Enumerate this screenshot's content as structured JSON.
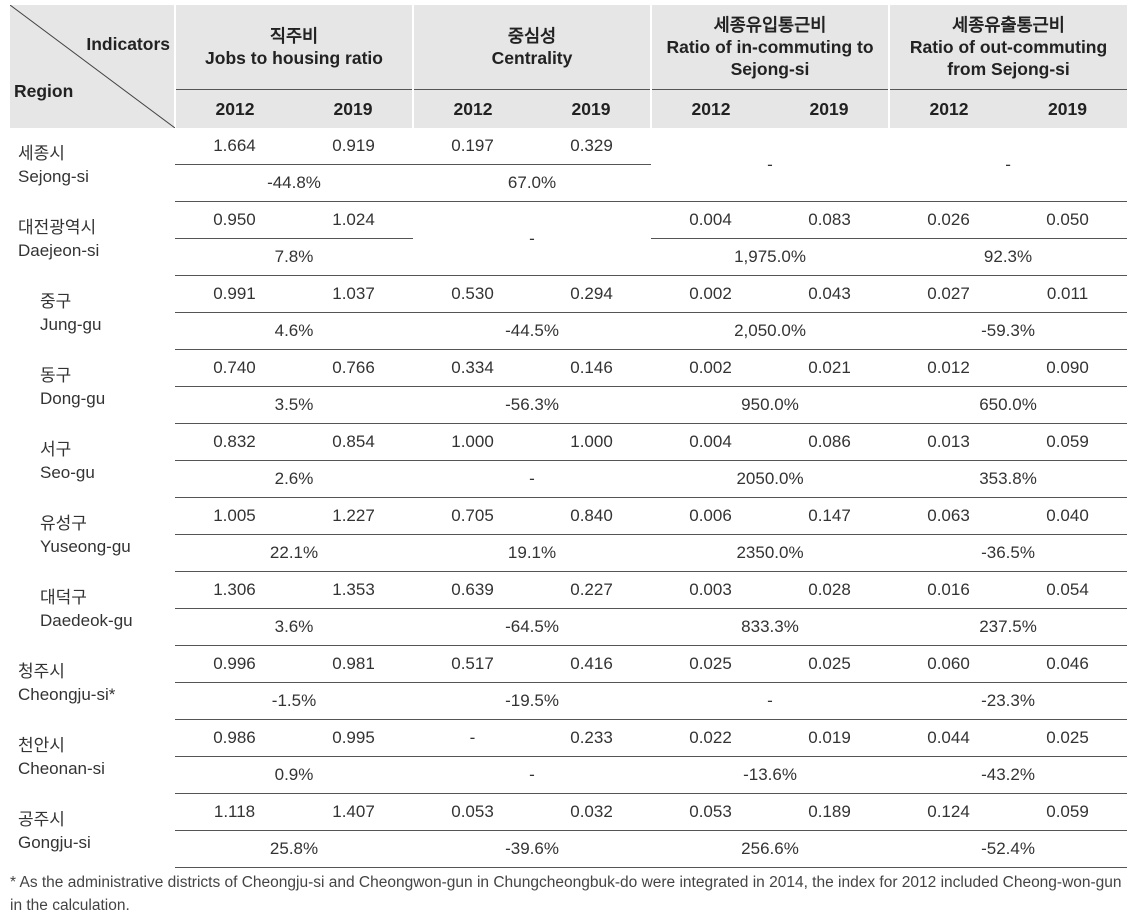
{
  "header": {
    "indicators_label": "Indicators",
    "region_label": "Region",
    "columns": [
      {
        "kr": "직주비",
        "en": "Jobs to housing ratio"
      },
      {
        "kr": "중심성",
        "en": "Centrality"
      },
      {
        "kr": "세종유입통근비",
        "en": "Ratio of in-commuting to Sejong-si"
      },
      {
        "kr": "세종유출통근비",
        "en": "Ratio of out-commuting from Sejong-si"
      }
    ],
    "year_a": "2012",
    "year_b": "2019"
  },
  "rows": [
    {
      "kr": "세종시",
      "en": "Sejong-si",
      "sub": false,
      "jh": [
        "1.664",
        "0.919",
        "-44.8%"
      ],
      "ce": [
        "0.197",
        "0.329",
        "67.0%"
      ],
      "in_merged": "-",
      "out_merged": "-"
    },
    {
      "kr": "대전광역시",
      "en": "Daejeon-si",
      "sub": false,
      "jh": [
        "0.950",
        "1.024",
        "7.8%"
      ],
      "ce_merged": "-",
      "in": [
        "0.004",
        "0.083",
        "1,975.0%"
      ],
      "out": [
        "0.026",
        "0.050",
        "92.3%"
      ]
    },
    {
      "kr": "중구",
      "en": "Jung-gu",
      "sub": true,
      "jh": [
        "0.991",
        "1.037",
        "4.6%"
      ],
      "ce": [
        "0.530",
        "0.294",
        "-44.5%"
      ],
      "in": [
        "0.002",
        "0.043",
        "2,050.0%"
      ],
      "out": [
        "0.027",
        "0.011",
        "-59.3%"
      ]
    },
    {
      "kr": "동구",
      "en": "Dong-gu",
      "sub": true,
      "jh": [
        "0.740",
        "0.766",
        "3.5%"
      ],
      "ce": [
        "0.334",
        "0.146",
        "-56.3%"
      ],
      "in": [
        "0.002",
        "0.021",
        "950.0%"
      ],
      "out": [
        "0.012",
        "0.090",
        "650.0%"
      ]
    },
    {
      "kr": "서구",
      "en": "Seo-gu",
      "sub": true,
      "jh": [
        "0.832",
        "0.854",
        "2.6%"
      ],
      "ce": [
        "1.000",
        "1.000",
        "-"
      ],
      "in": [
        "0.004",
        "0.086",
        "2050.0%"
      ],
      "out": [
        "0.013",
        "0.059",
        "353.8%"
      ]
    },
    {
      "kr": "유성구",
      "en": "Yuseong-gu",
      "sub": true,
      "jh": [
        "1.005",
        "1.227",
        "22.1%"
      ],
      "ce": [
        "0.705",
        "0.840",
        "19.1%"
      ],
      "in": [
        "0.006",
        "0.147",
        "2350.0%"
      ],
      "out": [
        "0.063",
        "0.040",
        "-36.5%"
      ]
    },
    {
      "kr": "대덕구",
      "en": "Daedeok-gu",
      "sub": true,
      "jh": [
        "1.306",
        "1.353",
        "3.6%"
      ],
      "ce": [
        "0.639",
        "0.227",
        "-64.5%"
      ],
      "in": [
        "0.003",
        "0.028",
        "833.3%"
      ],
      "out": [
        "0.016",
        "0.054",
        "237.5%"
      ]
    },
    {
      "kr": "청주시",
      "en": "Cheongju-si*",
      "sub": false,
      "jh": [
        "0.996",
        "0.981",
        "-1.5%"
      ],
      "ce": [
        "0.517",
        "0.416",
        "-19.5%"
      ],
      "in": [
        "0.025",
        "0.025",
        "-"
      ],
      "out": [
        "0.060",
        "0.046",
        "-23.3%"
      ]
    },
    {
      "kr": "천안시",
      "en": "Cheonan-si",
      "sub": false,
      "jh": [
        "0.986",
        "0.995",
        "0.9%"
      ],
      "ce": [
        "-",
        "0.233",
        "-"
      ],
      "in": [
        "0.022",
        "0.019",
        "-13.6%"
      ],
      "out": [
        "0.044",
        "0.025",
        "-43.2%"
      ]
    },
    {
      "kr": "공주시",
      "en": "Gongju-si",
      "sub": false,
      "jh": [
        "1.118",
        "1.407",
        "25.8%"
      ],
      "ce": [
        "0.053",
        "0.032",
        "-39.6%"
      ],
      "in": [
        "0.053",
        "0.189",
        "256.6%"
      ],
      "out": [
        "0.124",
        "0.059",
        "-52.4%"
      ]
    }
  ],
  "footnote": "* As the administrative districts of Cheongju-si and Cheongwon-gun in Chungcheongbuk-do were integrated in 2014, the index for 2012 included Cheong-won-gun in the calculation."
}
